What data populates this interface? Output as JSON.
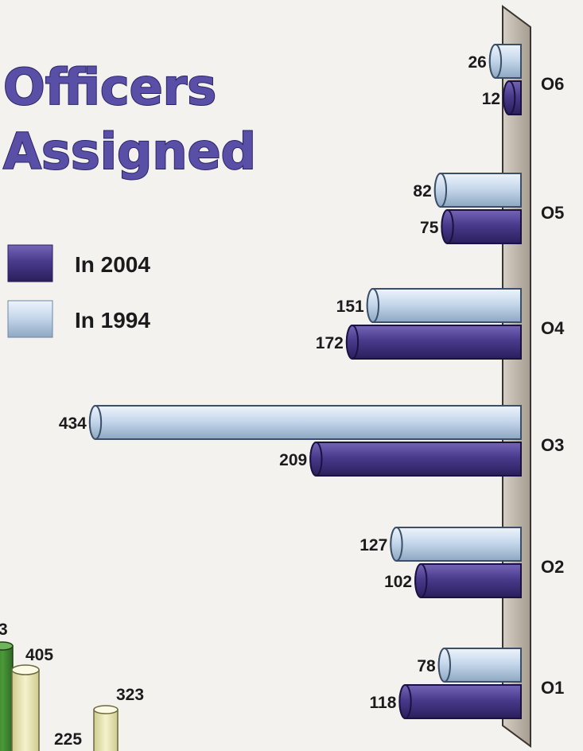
{
  "title": {
    "line1": "Officers",
    "line2": "Assigned"
  },
  "legend": [
    {
      "label": "In 2004",
      "color": "#4a3a8c"
    },
    {
      "label": "In 1994",
      "color": "#c6d8ec"
    }
  ],
  "chart_data": {
    "type": "bar",
    "orientation": "horizontal",
    "categories": [
      "O6",
      "O5",
      "O4",
      "O3",
      "O2",
      "O1"
    ],
    "series": [
      {
        "name": "In 1994",
        "values": [
          26,
          82,
          151,
          434,
          127,
          78
        ],
        "color": "#c6d8ec"
      },
      {
        "name": "In 2004",
        "values": [
          12,
          75,
          172,
          209,
          102,
          118
        ],
        "color": "#4a3a8c"
      }
    ],
    "xlim": [
      0,
      434
    ],
    "grid": false,
    "legend_position": "left"
  },
  "partial_chart": {
    "labels": [
      "3",
      "405",
      "323",
      "225"
    ],
    "colors": {
      "green": "#3f7d2f",
      "cream": "#e9e6b4"
    }
  }
}
